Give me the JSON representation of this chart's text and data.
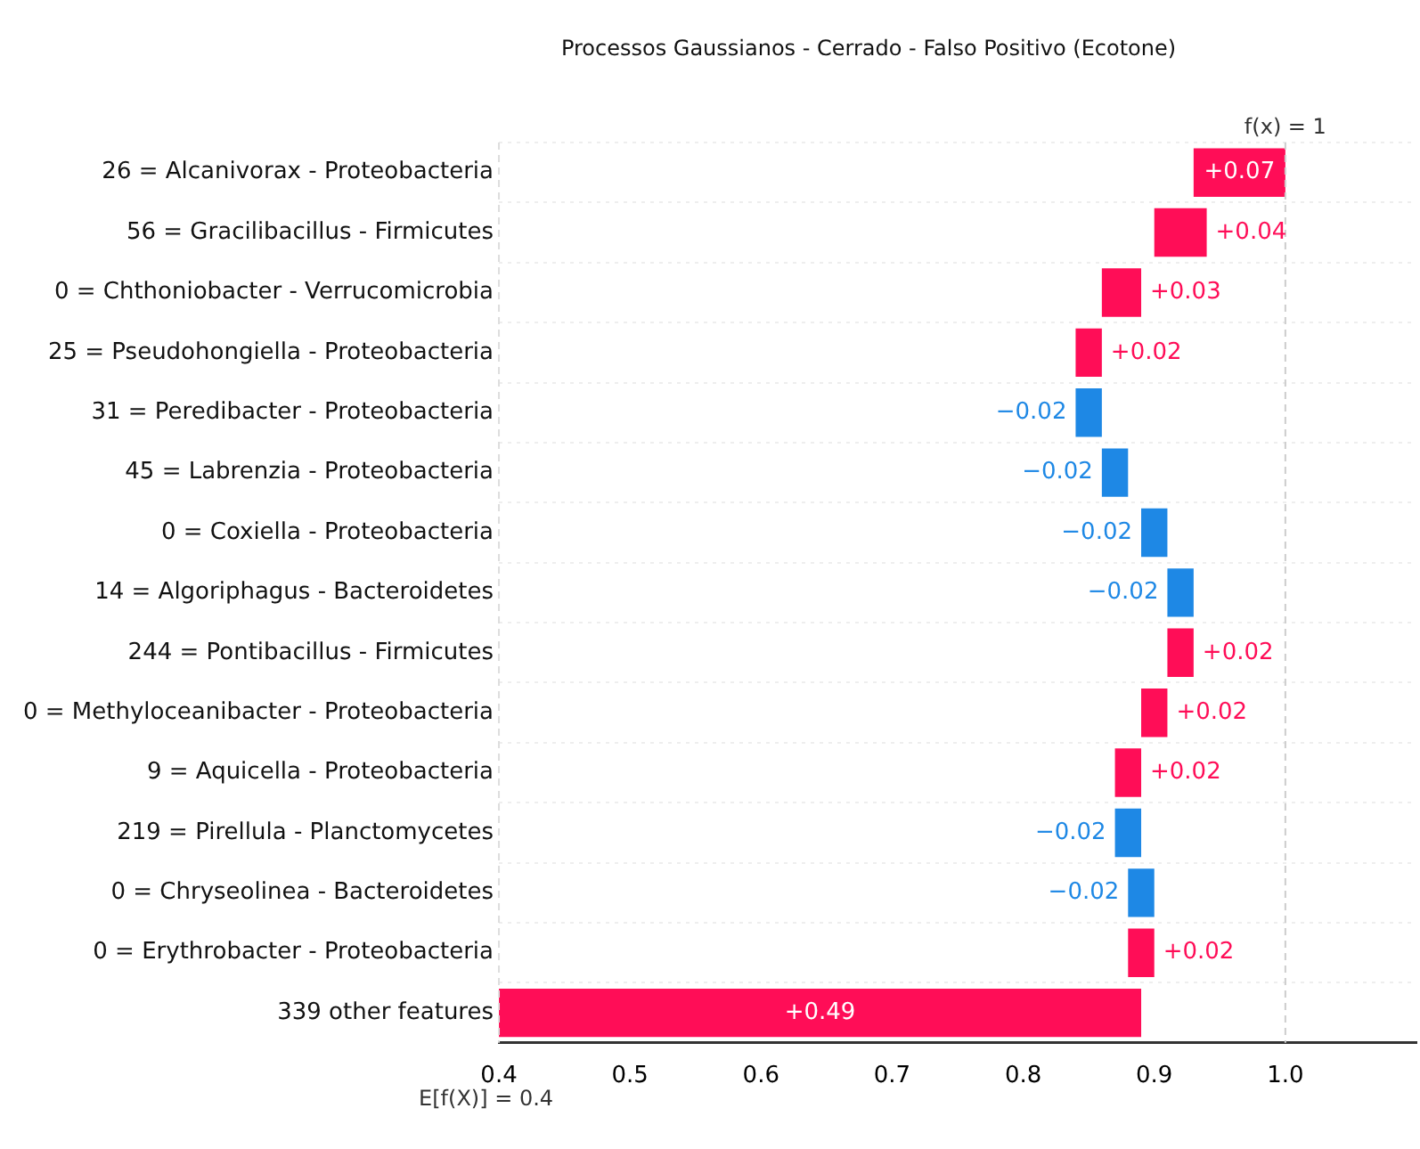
{
  "chart_data": {
    "type": "bar",
    "orientation": "horizontal",
    "title": "Processos Gaussianos - Cerrado - Falso Positivo (Ecotone)",
    "categories": [
      "26 = Alcanivorax - Proteobacteria",
      "56 = Gracilibacillus - Firmicutes",
      "0 = Chthoniobacter - Verrucomicrobia",
      "25 = Pseudohongiella - Proteobacteria",
      "31 = Peredibacter - Proteobacteria",
      "45 = Labrenzia - Proteobacteria",
      "0 = Coxiella - Proteobacteria",
      "14 = Algoriphagus - Bacteroidetes",
      "244 = Pontibacillus - Firmicutes",
      "0 = Methyloceanibacter - Proteobacteria",
      "9 = Aquicella - Proteobacteria",
      "219 = Pirellula - Planctomycetes",
      "0 = Chryseolinea - Bacteroidetes",
      "0 = Erythrobacter - Proteobacteria",
      "339 other features"
    ],
    "values": [
      0.07,
      0.04,
      0.03,
      0.02,
      -0.02,
      -0.02,
      -0.02,
      -0.02,
      0.02,
      0.02,
      0.02,
      -0.02,
      -0.02,
      0.02,
      0.49
    ],
    "base": [
      0.93,
      0.9,
      0.86,
      0.84,
      0.86,
      0.88,
      0.91,
      0.93,
      0.91,
      0.89,
      0.87,
      0.89,
      0.9,
      0.88,
      0.4
    ],
    "colors": [
      "#ff0d57",
      "#ff0d57",
      "#ff0d57",
      "#ff0d57",
      "#1e88e5",
      "#1e88e5",
      "#1e88e5",
      "#1e88e5",
      "#ff0d57",
      "#ff0d57",
      "#ff0d57",
      "#1e88e5",
      "#1e88e5",
      "#ff0d57",
      "#ff0d57"
    ],
    "value_labels": [
      "+0.07",
      "+0.04",
      "+0.03",
      "+0.02",
      "−0.02",
      "−0.02",
      "−0.02",
      "−0.02",
      "+0.02",
      "+0.02",
      "+0.02",
      "−0.02",
      "−0.02",
      "+0.02",
      "+0.49"
    ],
    "xlim": [
      0.4,
      1.1
    ],
    "xticks": [
      0.4,
      0.5,
      0.6,
      0.7,
      0.8,
      0.9,
      {
        "value": 1.0,
        "label": "1.0"
      }
    ],
    "ref_lines": [
      {
        "axis": "x",
        "value": 1.0,
        "label": "f(x) = 1",
        "color": "#cccccc",
        "line_style": "dashed"
      },
      {
        "axis": "x",
        "value": 0.4,
        "label": "E[f(X)] = 0.4",
        "color": "#dddddd",
        "line_style": "dashed"
      }
    ],
    "grid": "y",
    "legend": false
  }
}
